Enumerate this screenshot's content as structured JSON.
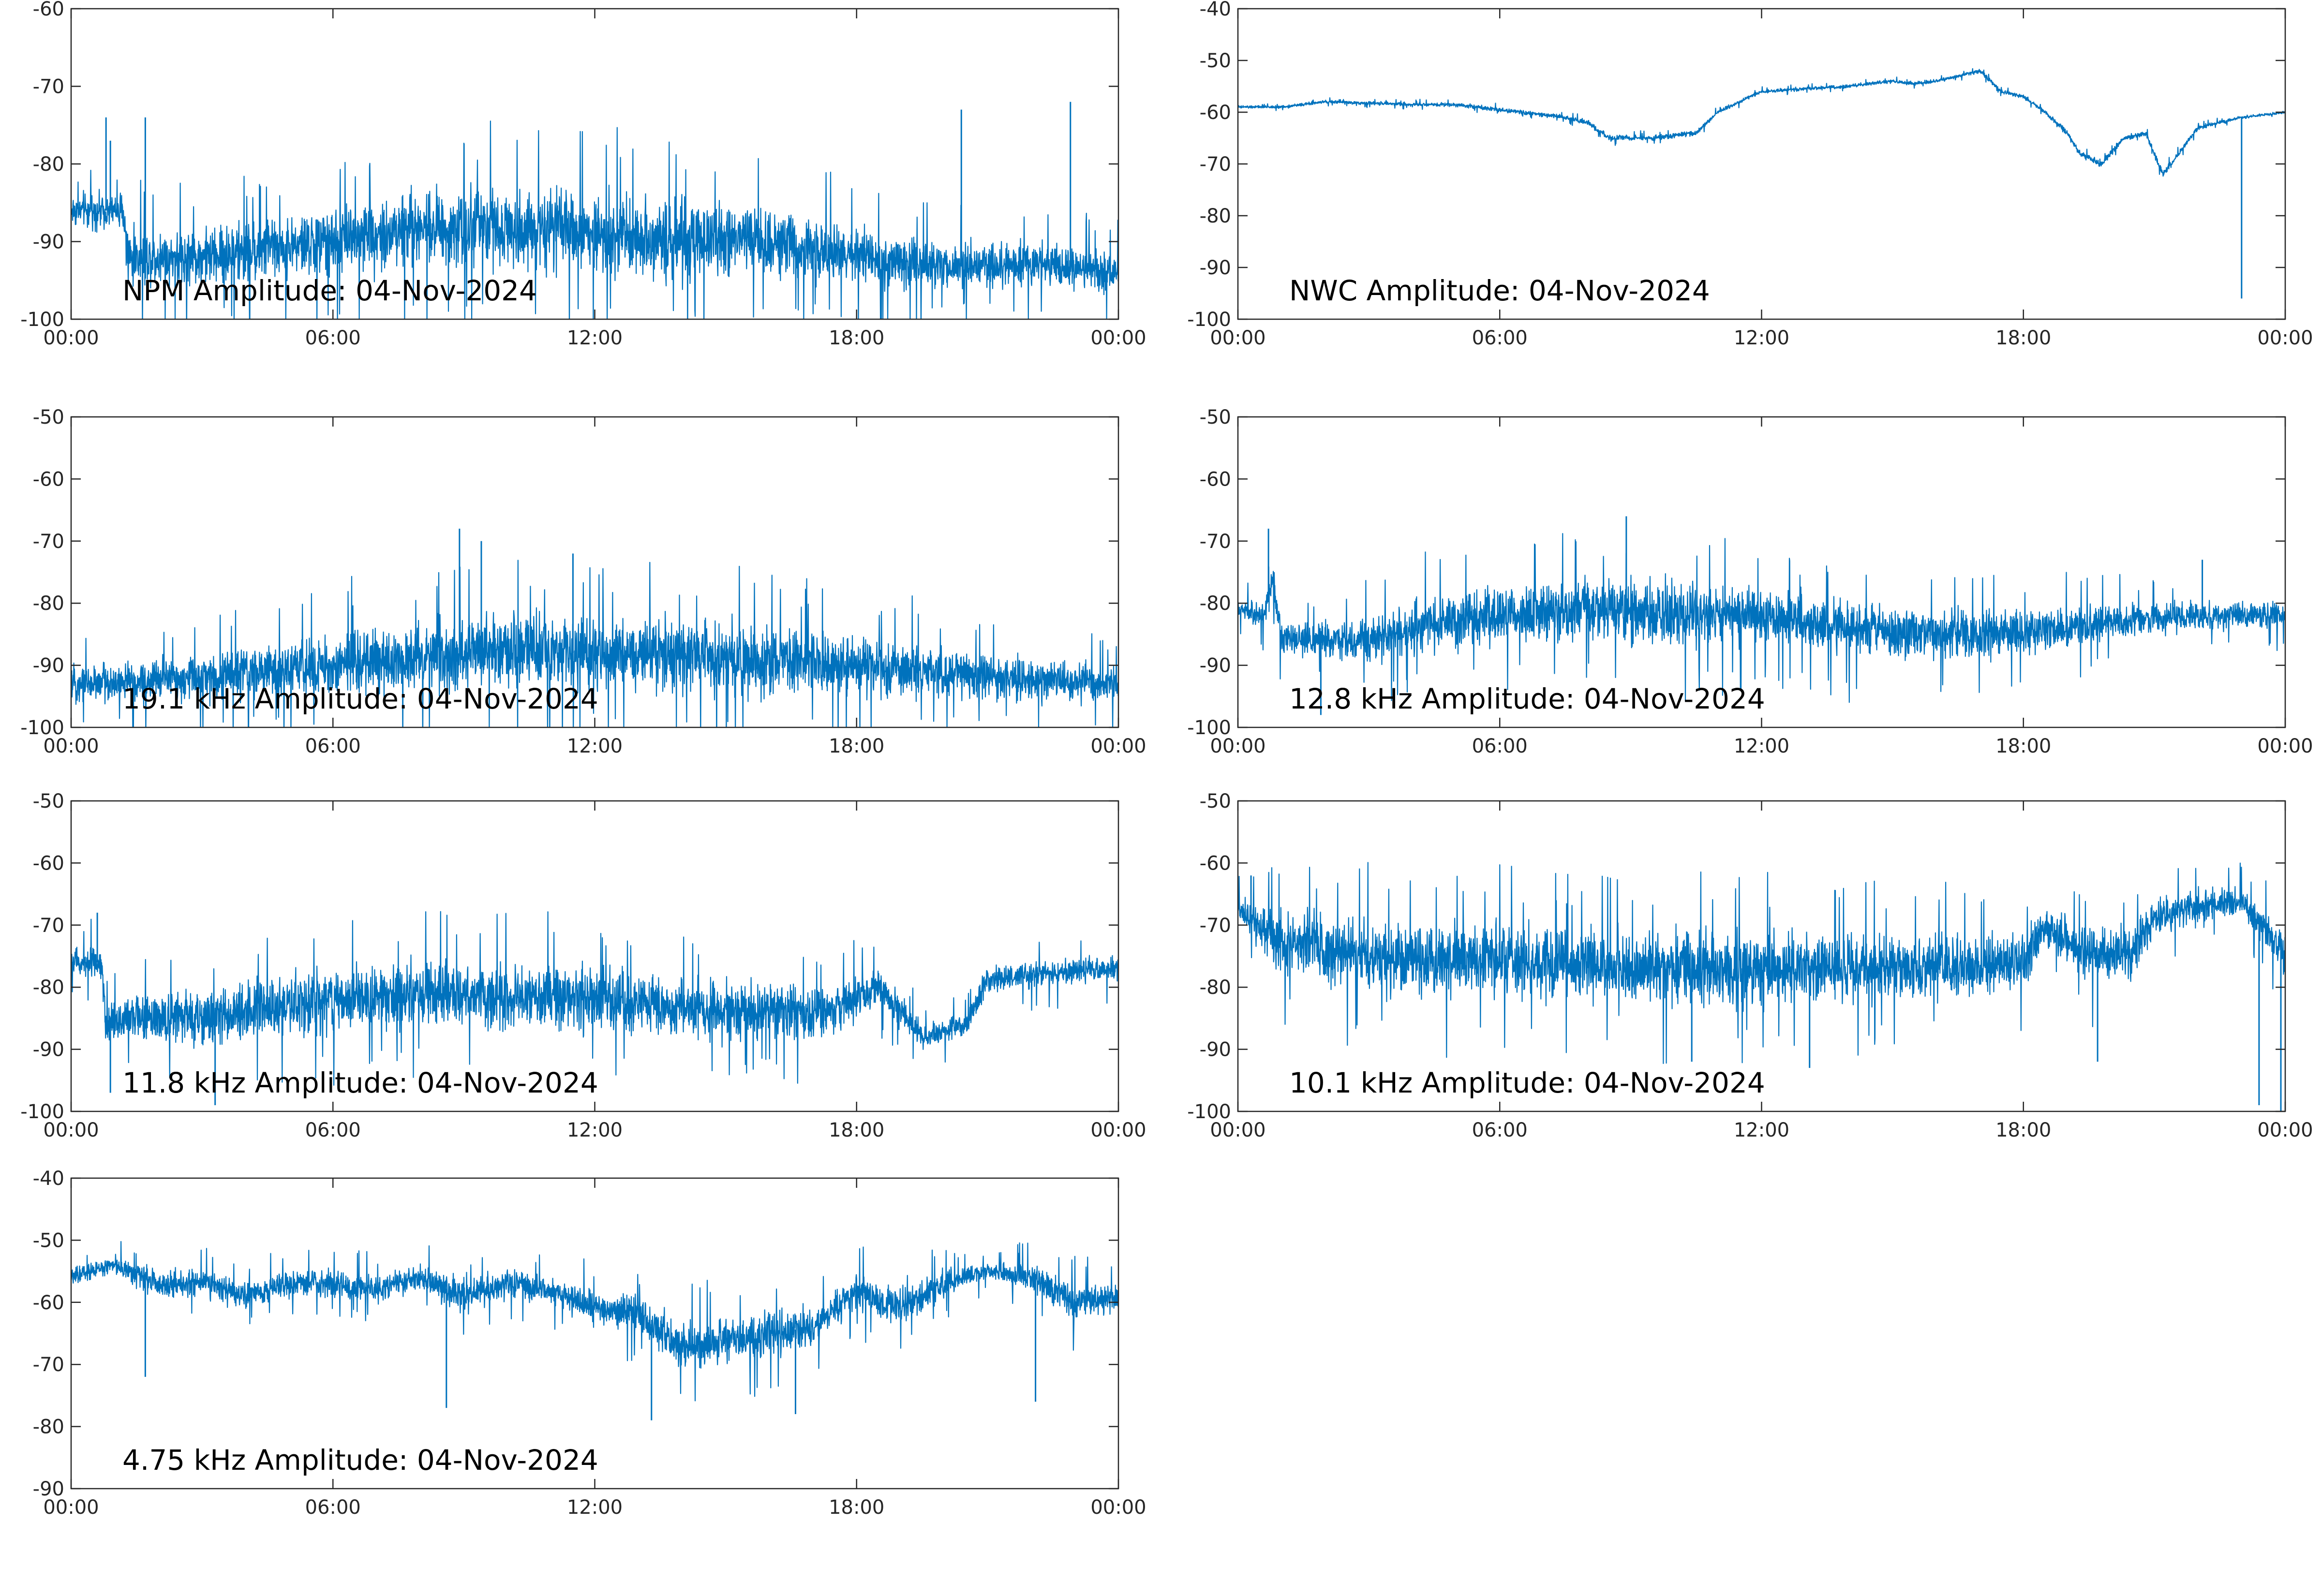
{
  "colors": {
    "line": "#0072BD",
    "axis": "#262626",
    "background": "#ffffff"
  },
  "chart_data": [
    {
      "type": "line",
      "title": "NPM Amplitude: 04-Nov-2024",
      "xlim": [
        "00:00",
        "24:00"
      ],
      "xticks": [
        "00:00",
        "06:00",
        "12:00",
        "18:00",
        "00:00"
      ],
      "ylim": [
        -100,
        -60
      ],
      "yticks": [
        -60,
        -70,
        -80,
        -90,
        -100
      ],
      "grid": false,
      "series": [
        {
          "envelope": {
            "hours": [
              0,
              1.2,
              1.3,
              3,
              6,
              8,
              10,
              12,
              14,
              16,
              18,
              20,
              22,
              24
            ],
            "center": [
              -86,
              -86,
              -92,
              -92,
              -90,
              -88,
              -88,
              -89,
              -90,
              -90,
              -92,
              -93,
              -93,
              -94
            ],
            "spread": [
              3,
              3,
              5,
              5,
              6,
              7,
              7,
              7,
              7,
              6,
              5,
              4,
              4,
              4
            ]
          },
          "spikes": [
            [
              0.8,
              -74
            ],
            [
              0.9,
              -77
            ],
            [
              1.7,
              -74
            ],
            [
              20.4,
              -73
            ],
            [
              22.9,
              -72
            ]
          ]
        }
      ]
    },
    {
      "type": "line",
      "title": "NWC Amplitude: 04-Nov-2024",
      "xlim": [
        "00:00",
        "24:00"
      ],
      "xticks": [
        "00:00",
        "06:00",
        "12:00",
        "18:00",
        "00:00"
      ],
      "ylim": [
        -100,
        -40
      ],
      "yticks": [
        -40,
        -50,
        -60,
        -70,
        -80,
        -90,
        -100
      ],
      "grid": false,
      "series": [
        {
          "envelope": {
            "hours": [
              0,
              1,
              2,
              4,
              5,
              7,
              7.5,
              8,
              8.5,
              9.5,
              10.5,
              11,
              12,
              13,
              14,
              15,
              15.5,
              16,
              16.5,
              17,
              17.5,
              18,
              18.5,
              19,
              19.3,
              19.8,
              20.3,
              20.8,
              21.2,
              22,
              23,
              24
            ],
            "center": [
              -59,
              -59,
              -58,
              -58.5,
              -58.5,
              -60.5,
              -61,
              -62,
              -65,
              -65,
              -64,
              -60,
              -56,
              -55.5,
              -55,
              -54,
              -54.5,
              -54,
              -53,
              -52,
              -56,
              -57,
              -60,
              -64,
              -68,
              -70,
              -65,
              -64,
              -72,
              -63,
              -61,
              -60
            ],
            "spread": [
              0.4,
              0.4,
              0.4,
              0.5,
              0.6,
              0.6,
              0.6,
              0.7,
              0.8,
              0.7,
              0.7,
              0.6,
              0.5,
              0.5,
              0.5,
              0.5,
              0.5,
              0.5,
              0.5,
              0.5,
              0.6,
              0.6,
              0.7,
              0.8,
              0.9,
              0.9,
              0.8,
              0.8,
              0.9,
              0.6,
              0.4,
              0.4
            ]
          },
          "spikes": [
            [
              23.0,
              -96
            ]
          ]
        }
      ]
    },
    {
      "type": "line",
      "title": "19.1 kHz Amplitude: 04-Nov-2024",
      "xlim": [
        "00:00",
        "24:00"
      ],
      "xticks": [
        "00:00",
        "06:00",
        "12:00",
        "18:00",
        "00:00"
      ],
      "ylim": [
        -100,
        -50
      ],
      "yticks": [
        -50,
        -60,
        -70,
        -80,
        -90,
        -100
      ],
      "grid": false,
      "series": [
        {
          "envelope": {
            "hours": [
              0,
              3,
              6,
              9,
              12,
              15,
              18,
              21,
              24
            ],
            "center": [
              -93,
              -92,
              -90,
              -88,
              -88,
              -89,
              -90,
              -92,
              -93
            ],
            "spread": [
              4,
              5,
              7,
              8,
              8,
              8,
              7,
              5,
              4
            ]
          },
          "spikes": [
            [
              8.9,
              -68
            ],
            [
              9.4,
              -70
            ],
            [
              11.5,
              -72
            ]
          ]
        }
      ]
    },
    {
      "type": "line",
      "title": "12.8 kHz Amplitude: 04-Nov-2024",
      "xlim": [
        "00:00",
        "24:00"
      ],
      "xticks": [
        "00:00",
        "06:00",
        "12:00",
        "18:00",
        "00:00"
      ],
      "ylim": [
        -100,
        -50
      ],
      "yticks": [
        -50,
        -60,
        -70,
        -80,
        -90,
        -100
      ],
      "grid": false,
      "series": [
        {
          "envelope": {
            "hours": [
              0,
              0.6,
              0.8,
              1,
              2,
              3,
              4,
              6,
              8,
              10,
              12,
              14,
              16,
              18,
              20,
              22,
              24
            ],
            "center": [
              -81,
              -82,
              -76,
              -86,
              -86,
              -86,
              -84,
              -82,
              -81,
              -82,
              -82,
              -84,
              -85,
              -85,
              -83,
              -82,
              -82
            ],
            "spread": [
              2,
              3,
              4,
              4,
              4,
              5,
              6,
              6,
              7,
              7,
              6,
              6,
              5,
              5,
              4,
              3,
              3
            ]
          },
          "spikes": [
            [
              0.7,
              -68
            ],
            [
              8.9,
              -66
            ],
            [
              22.1,
              -73
            ],
            [
              1.9,
              -98
            ]
          ]
        }
      ]
    },
    {
      "type": "line",
      "title": "11.8 kHz Amplitude: 04-Nov-2024",
      "xlim": [
        "00:00",
        "24:00"
      ],
      "xticks": [
        "00:00",
        "06:00",
        "12:00",
        "18:00",
        "00:00"
      ],
      "ylim": [
        -100,
        -50
      ],
      "yticks": [
        -50,
        -60,
        -70,
        -80,
        -90,
        -100
      ],
      "grid": false,
      "series": [
        {
          "envelope": {
            "hours": [
              0,
              0.7,
              0.8,
              1,
              3,
              6,
              9,
              12,
              15,
              17.5,
              18.5,
              19.5,
              20.5,
              21,
              22,
              24
            ],
            "center": [
              -76,
              -76,
              -86,
              -85,
              -85,
              -82,
              -81,
              -82,
              -84,
              -84,
              -80,
              -88,
              -86,
              -79,
              -78,
              -77
            ],
            "spread": [
              3,
              4,
              5,
              5,
              6,
              7,
              7,
              7,
              6,
              6,
              4,
              3,
              3,
              3,
              3,
              3
            ]
          },
          "spikes": [
            [
              0.6,
              -68
            ],
            [
              0.9,
              -97
            ],
            [
              3.3,
              -99
            ]
          ]
        }
      ]
    },
    {
      "type": "line",
      "title": "10.1 kHz Amplitude: 04-Nov-2024",
      "xlim": [
        "00:00",
        "24:00"
      ],
      "xticks": [
        "00:00",
        "06:00",
        "12:00",
        "18:00",
        "00:00"
      ],
      "ylim": [
        -100,
        -50
      ],
      "yticks": [
        -50,
        -60,
        -70,
        -80,
        -90,
        -100
      ],
      "grid": false,
      "series": [
        {
          "envelope": {
            "hours": [
              0,
              0.5,
              1,
              3,
              6,
              9,
              12,
              15,
              18,
              18.5,
              19.5,
              20.5,
              21,
              22,
              23,
              23.5,
              24
            ],
            "center": [
              -67,
              -70,
              -73,
              -75,
              -76,
              -77,
              -77,
              -77,
              -76,
              -70,
              -75,
              -74,
              -69,
              -67,
              -66,
              -70,
              -75
            ],
            "spread": [
              4,
              5,
              7,
              8,
              8,
              8,
              8,
              7,
              7,
              4,
              6,
              6,
              4,
              4,
              3,
              4,
              5
            ]
          },
          "spikes": [
            [
              0.3,
              -62
            ],
            [
              23.4,
              -99
            ],
            [
              23.9,
              -100
            ],
            [
              13.1,
              -93
            ],
            [
              10.4,
              -92
            ],
            [
              19.7,
              -92
            ]
          ]
        }
      ]
    },
    {
      "type": "line",
      "title": "4.75 kHz Amplitude: 04-Nov-2024",
      "xlim": [
        "00:00",
        "24:00"
      ],
      "xticks": [
        "00:00",
        "06:00",
        "12:00",
        "18:00",
        "00:00"
      ],
      "ylim": [
        -90,
        -40
      ],
      "yticks": [
        -40,
        -50,
        -60,
        -70,
        -80,
        -90
      ],
      "grid": false,
      "series": [
        {
          "envelope": {
            "hours": [
              0,
              1,
              2,
              3,
              4,
              5,
              6,
              7,
              8,
              9,
              10,
              11,
              12,
              13,
              14,
              15,
              16,
              17,
              18,
              19,
              20,
              21,
              22,
              23,
              24
            ],
            "center": [
              -56,
              -54,
              -57,
              -57,
              -59,
              -57,
              -57,
              -58,
              -56,
              -59,
              -57,
              -58,
              -61,
              -62,
              -67,
              -66,
              -65,
              -64,
              -58,
              -61,
              -57,
              -55,
              -56,
              -60,
              -59
            ],
            "spread": [
              2,
              2,
              3,
              3,
              3,
              3,
              3,
              3,
              3,
              4,
              3,
              3,
              4,
              4,
              5,
              5,
              5,
              4,
              4,
              4,
              3,
              2,
              3,
              4,
              3
            ]
          },
          "spikes": [
            [
              1.7,
              -72
            ],
            [
              8.6,
              -77
            ],
            [
              13.3,
              -79
            ],
            [
              16.6,
              -78
            ],
            [
              22.1,
              -76
            ]
          ]
        }
      ]
    }
  ]
}
